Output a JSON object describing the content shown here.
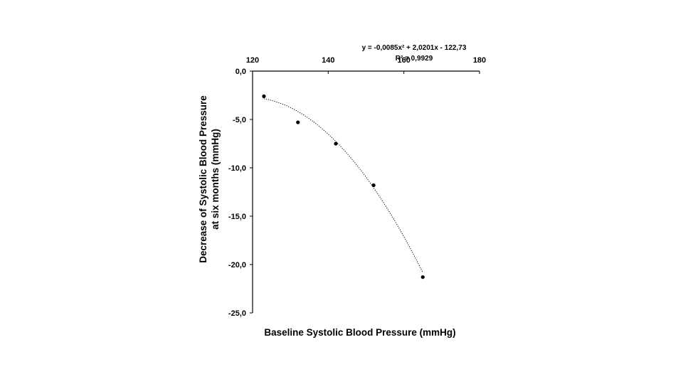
{
  "chart_data": {
    "type": "scatter",
    "xlabel": "Baseline Systolic Blood Pressure (mmHg)",
    "ylabel_lines": [
      "Decrease of Systolic Blood Pressure",
      "at six months (mmHg)"
    ],
    "xlim": [
      120,
      180
    ],
    "ylim": [
      -25,
      0
    ],
    "x_ticks": [
      120,
      140,
      160,
      180
    ],
    "x_tick_labels": [
      "120",
      "140",
      "160",
      "180"
    ],
    "y_ticks": [
      0,
      -5,
      -10,
      -15,
      -20,
      -25
    ],
    "y_tick_labels": [
      "0,0",
      "-5,0",
      "-10,0",
      "-15,0",
      "-20,0",
      "-25,0"
    ],
    "x_axis_position": "top",
    "grid": false,
    "points": [
      {
        "x": 123,
        "y": -2.6
      },
      {
        "x": 132,
        "y": -5.3
      },
      {
        "x": 142,
        "y": -7.5
      },
      {
        "x": 152,
        "y": -11.8
      },
      {
        "x": 165,
        "y": -21.3
      }
    ],
    "trendline": {
      "type": "polynomial",
      "coefficients": [
        -0.0085,
        2.0201,
        -122.73
      ],
      "x_range": [
        123,
        165
      ],
      "style": "dotted",
      "equation_label": "y = -0,0085x² + 2,0201x - 122,73",
      "r2_label": "R² = 0,9929"
    }
  }
}
